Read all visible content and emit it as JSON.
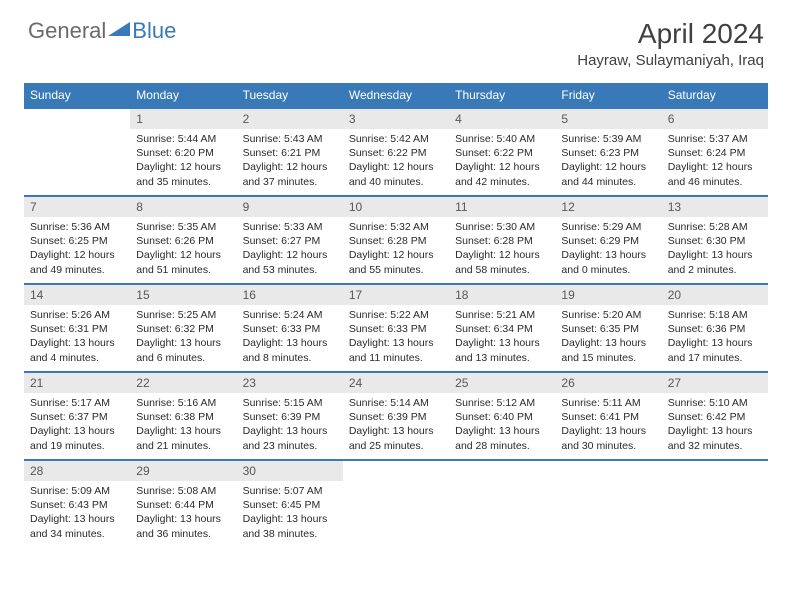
{
  "brand": {
    "general": "General",
    "blue": "Blue"
  },
  "title": "April 2024",
  "location": "Hayraw, Sulaymaniyah, Iraq",
  "colors": {
    "header_bg": "#3a79b7",
    "daynum_bg": "#e9e9e9",
    "border": "#3a79b7",
    "text": "#2a2a2a"
  },
  "days_of_week": [
    "Sunday",
    "Monday",
    "Tuesday",
    "Wednesday",
    "Thursday",
    "Friday",
    "Saturday"
  ],
  "weeks": [
    [
      {
        "n": "",
        "sunrise": "",
        "sunset": "",
        "daylight": ""
      },
      {
        "n": "1",
        "sunrise": "Sunrise: 5:44 AM",
        "sunset": "Sunset: 6:20 PM",
        "daylight": "Daylight: 12 hours and 35 minutes."
      },
      {
        "n": "2",
        "sunrise": "Sunrise: 5:43 AM",
        "sunset": "Sunset: 6:21 PM",
        "daylight": "Daylight: 12 hours and 37 minutes."
      },
      {
        "n": "3",
        "sunrise": "Sunrise: 5:42 AM",
        "sunset": "Sunset: 6:22 PM",
        "daylight": "Daylight: 12 hours and 40 minutes."
      },
      {
        "n": "4",
        "sunrise": "Sunrise: 5:40 AM",
        "sunset": "Sunset: 6:22 PM",
        "daylight": "Daylight: 12 hours and 42 minutes."
      },
      {
        "n": "5",
        "sunrise": "Sunrise: 5:39 AM",
        "sunset": "Sunset: 6:23 PM",
        "daylight": "Daylight: 12 hours and 44 minutes."
      },
      {
        "n": "6",
        "sunrise": "Sunrise: 5:37 AM",
        "sunset": "Sunset: 6:24 PM",
        "daylight": "Daylight: 12 hours and 46 minutes."
      }
    ],
    [
      {
        "n": "7",
        "sunrise": "Sunrise: 5:36 AM",
        "sunset": "Sunset: 6:25 PM",
        "daylight": "Daylight: 12 hours and 49 minutes."
      },
      {
        "n": "8",
        "sunrise": "Sunrise: 5:35 AM",
        "sunset": "Sunset: 6:26 PM",
        "daylight": "Daylight: 12 hours and 51 minutes."
      },
      {
        "n": "9",
        "sunrise": "Sunrise: 5:33 AM",
        "sunset": "Sunset: 6:27 PM",
        "daylight": "Daylight: 12 hours and 53 minutes."
      },
      {
        "n": "10",
        "sunrise": "Sunrise: 5:32 AM",
        "sunset": "Sunset: 6:28 PM",
        "daylight": "Daylight: 12 hours and 55 minutes."
      },
      {
        "n": "11",
        "sunrise": "Sunrise: 5:30 AM",
        "sunset": "Sunset: 6:28 PM",
        "daylight": "Daylight: 12 hours and 58 minutes."
      },
      {
        "n": "12",
        "sunrise": "Sunrise: 5:29 AM",
        "sunset": "Sunset: 6:29 PM",
        "daylight": "Daylight: 13 hours and 0 minutes."
      },
      {
        "n": "13",
        "sunrise": "Sunrise: 5:28 AM",
        "sunset": "Sunset: 6:30 PM",
        "daylight": "Daylight: 13 hours and 2 minutes."
      }
    ],
    [
      {
        "n": "14",
        "sunrise": "Sunrise: 5:26 AM",
        "sunset": "Sunset: 6:31 PM",
        "daylight": "Daylight: 13 hours and 4 minutes."
      },
      {
        "n": "15",
        "sunrise": "Sunrise: 5:25 AM",
        "sunset": "Sunset: 6:32 PM",
        "daylight": "Daylight: 13 hours and 6 minutes."
      },
      {
        "n": "16",
        "sunrise": "Sunrise: 5:24 AM",
        "sunset": "Sunset: 6:33 PM",
        "daylight": "Daylight: 13 hours and 8 minutes."
      },
      {
        "n": "17",
        "sunrise": "Sunrise: 5:22 AM",
        "sunset": "Sunset: 6:33 PM",
        "daylight": "Daylight: 13 hours and 11 minutes."
      },
      {
        "n": "18",
        "sunrise": "Sunrise: 5:21 AM",
        "sunset": "Sunset: 6:34 PM",
        "daylight": "Daylight: 13 hours and 13 minutes."
      },
      {
        "n": "19",
        "sunrise": "Sunrise: 5:20 AM",
        "sunset": "Sunset: 6:35 PM",
        "daylight": "Daylight: 13 hours and 15 minutes."
      },
      {
        "n": "20",
        "sunrise": "Sunrise: 5:18 AM",
        "sunset": "Sunset: 6:36 PM",
        "daylight": "Daylight: 13 hours and 17 minutes."
      }
    ],
    [
      {
        "n": "21",
        "sunrise": "Sunrise: 5:17 AM",
        "sunset": "Sunset: 6:37 PM",
        "daylight": "Daylight: 13 hours and 19 minutes."
      },
      {
        "n": "22",
        "sunrise": "Sunrise: 5:16 AM",
        "sunset": "Sunset: 6:38 PM",
        "daylight": "Daylight: 13 hours and 21 minutes."
      },
      {
        "n": "23",
        "sunrise": "Sunrise: 5:15 AM",
        "sunset": "Sunset: 6:39 PM",
        "daylight": "Daylight: 13 hours and 23 minutes."
      },
      {
        "n": "24",
        "sunrise": "Sunrise: 5:14 AM",
        "sunset": "Sunset: 6:39 PM",
        "daylight": "Daylight: 13 hours and 25 minutes."
      },
      {
        "n": "25",
        "sunrise": "Sunrise: 5:12 AM",
        "sunset": "Sunset: 6:40 PM",
        "daylight": "Daylight: 13 hours and 28 minutes."
      },
      {
        "n": "26",
        "sunrise": "Sunrise: 5:11 AM",
        "sunset": "Sunset: 6:41 PM",
        "daylight": "Daylight: 13 hours and 30 minutes."
      },
      {
        "n": "27",
        "sunrise": "Sunrise: 5:10 AM",
        "sunset": "Sunset: 6:42 PM",
        "daylight": "Daylight: 13 hours and 32 minutes."
      }
    ],
    [
      {
        "n": "28",
        "sunrise": "Sunrise: 5:09 AM",
        "sunset": "Sunset: 6:43 PM",
        "daylight": "Daylight: 13 hours and 34 minutes."
      },
      {
        "n": "29",
        "sunrise": "Sunrise: 5:08 AM",
        "sunset": "Sunset: 6:44 PM",
        "daylight": "Daylight: 13 hours and 36 minutes."
      },
      {
        "n": "30",
        "sunrise": "Sunrise: 5:07 AM",
        "sunset": "Sunset: 6:45 PM",
        "daylight": "Daylight: 13 hours and 38 minutes."
      },
      {
        "n": "",
        "sunrise": "",
        "sunset": "",
        "daylight": ""
      },
      {
        "n": "",
        "sunrise": "",
        "sunset": "",
        "daylight": ""
      },
      {
        "n": "",
        "sunrise": "",
        "sunset": "",
        "daylight": ""
      },
      {
        "n": "",
        "sunrise": "",
        "sunset": "",
        "daylight": ""
      }
    ]
  ]
}
